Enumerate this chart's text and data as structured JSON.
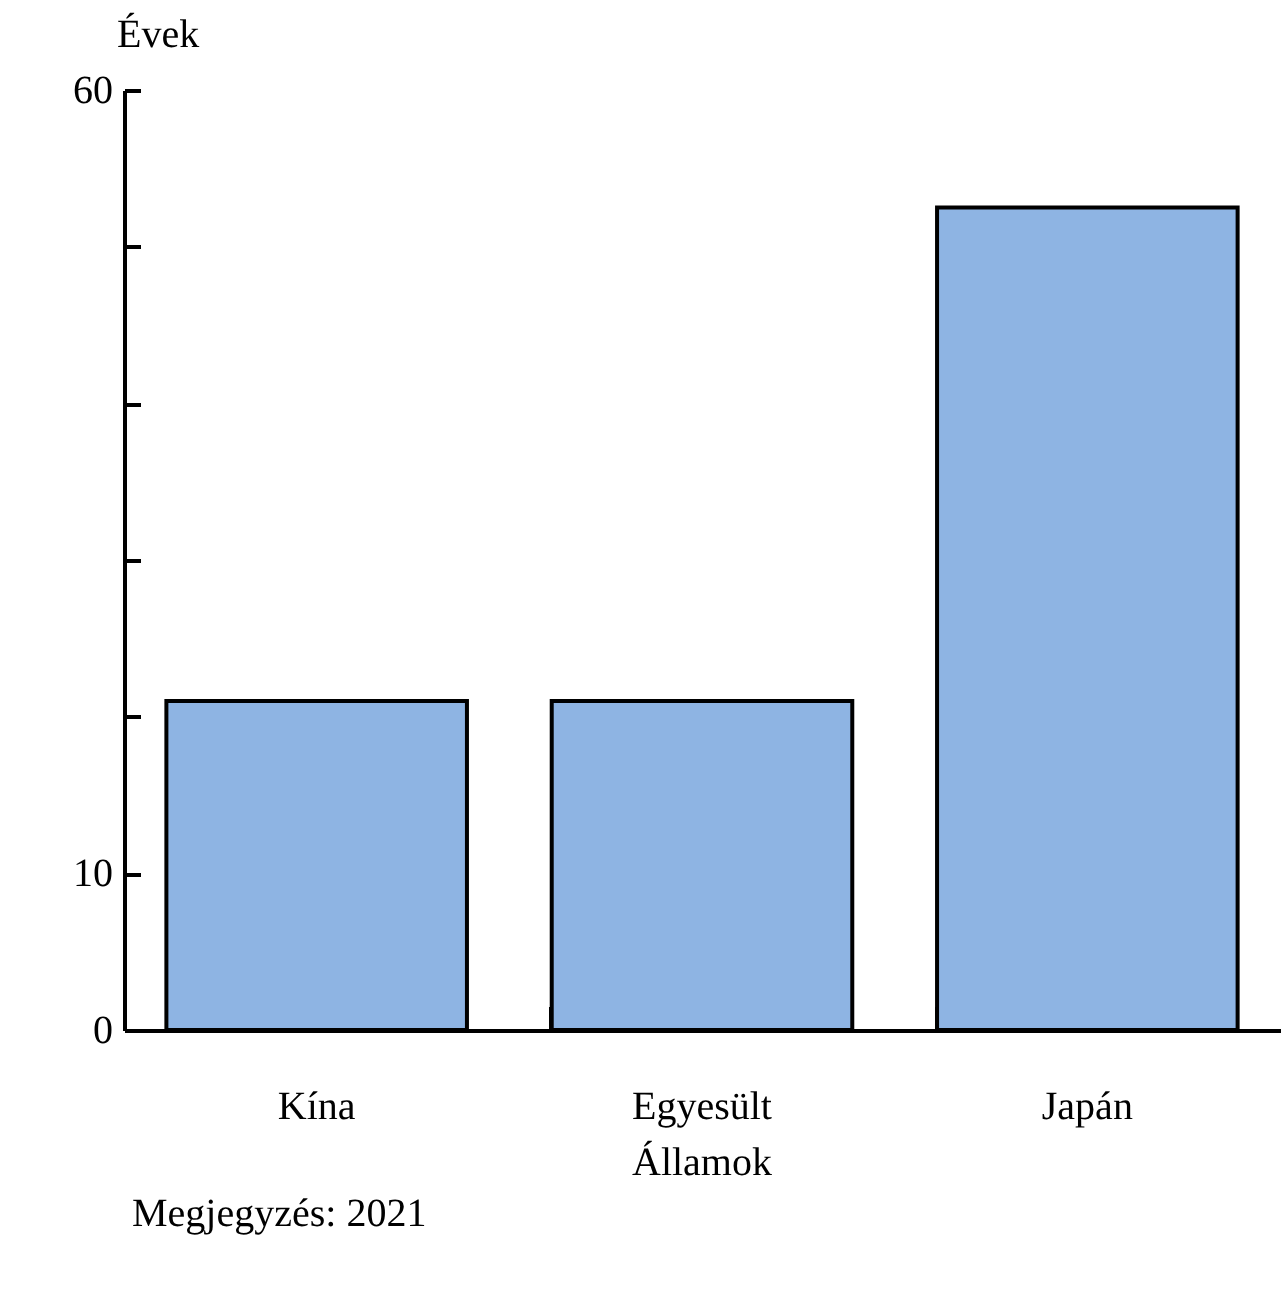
{
  "chart_data": {
    "type": "bar",
    "ylabel": "Évek",
    "categories": [
      "Kína",
      "Egyesült Államok",
      "Japán"
    ],
    "values": [
      21,
      21,
      52.5
    ],
    "color": "#8eb4e3",
    "ylim": [
      0,
      60
    ],
    "yticks": [
      0,
      10,
      {
        "value": 20,
        "label": null
      },
      {
        "value": 30,
        "label": null
      },
      {
        "value": 40,
        "label": null
      },
      {
        "value": 50,
        "label": null
      },
      60
    ],
    "annotations": [
      "Megjegyzés: 2021"
    ]
  }
}
